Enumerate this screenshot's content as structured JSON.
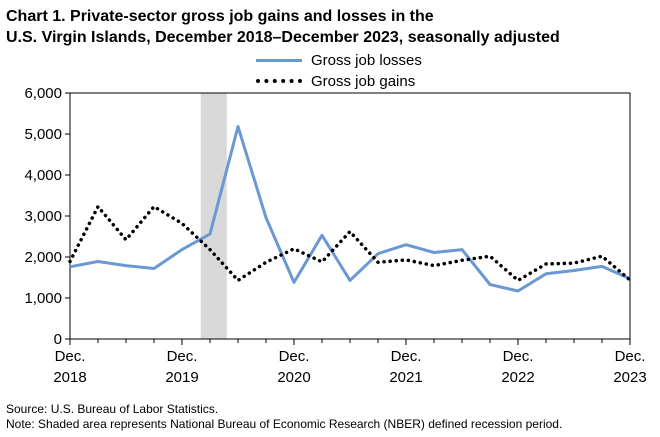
{
  "title_lines": [
    "Chart 1. Private-sector gross job gains and losses in the",
    "U.S. Virgin Islands, December 2018–December 2023, seasonally adjusted"
  ],
  "footnotes": {
    "source": "Source: U.S. Bureau of Labor Statistics.",
    "note": "Note: Shaded area represents National Bureau of Economic Research (NBER) defined recession period."
  },
  "chart_data": {
    "type": "line",
    "title": "Chart 1. Private-sector gross job gains and losses in the U.S. Virgin Islands, December 2018–December 2023, seasonally adjusted",
    "x": [
      "Dec. 2018",
      "Mar. 2019",
      "Jun. 2019",
      "Sep. 2019",
      "Dec. 2019",
      "Mar. 2020",
      "Jun. 2020",
      "Sep. 2020",
      "Dec. 2020",
      "Mar. 2021",
      "Jun. 2021",
      "Sep. 2021",
      "Dec. 2021",
      "Mar. 2022",
      "Jun. 2022",
      "Sep. 2022",
      "Dec. 2022",
      "Mar. 2023",
      "Jun. 2023",
      "Sep. 2023",
      "Dec. 2023"
    ],
    "x_tick_labels": [
      {
        "index": 0,
        "line1": "Dec.",
        "line2": "2018"
      },
      {
        "index": 4,
        "line1": "Dec.",
        "line2": "2019"
      },
      {
        "index": 8,
        "line1": "Dec.",
        "line2": "2020"
      },
      {
        "index": 12,
        "line1": "Dec.",
        "line2": "2021"
      },
      {
        "index": 16,
        "line1": "Dec.",
        "line2": "2022"
      },
      {
        "index": 20,
        "line1": "Dec.",
        "line2": "2023"
      }
    ],
    "y_ticks": [
      "0",
      "1,000",
      "2,000",
      "3,000",
      "4,000",
      "5,000",
      "6,000"
    ],
    "ylim": [
      0,
      6000
    ],
    "grid": false,
    "legend_position": "top-center",
    "recession_shading": {
      "from": "Feb. 2020",
      "to": "Apr. 2020",
      "from_index": 4.67,
      "to_index": 5.6,
      "color": "#d9d9d9"
    },
    "series": [
      {
        "name": "Gross job losses",
        "style": "solid",
        "color": "#6a98d2",
        "values": [
          1760,
          1890,
          1790,
          1720,
          2180,
          2560,
          5180,
          2960,
          1380,
          2530,
          1430,
          2080,
          2300,
          2110,
          2180,
          1330,
          1170,
          1590,
          1670,
          1770,
          1470
        ]
      },
      {
        "name": "Gross job gains",
        "style": "dotted",
        "color": "#000000",
        "values": [
          1890,
          3230,
          2420,
          3230,
          2820,
          2180,
          1430,
          1870,
          2200,
          1880,
          2620,
          1870,
          1930,
          1790,
          1920,
          2020,
          1430,
          1830,
          1850,
          2020,
          1440
        ]
      }
    ]
  }
}
